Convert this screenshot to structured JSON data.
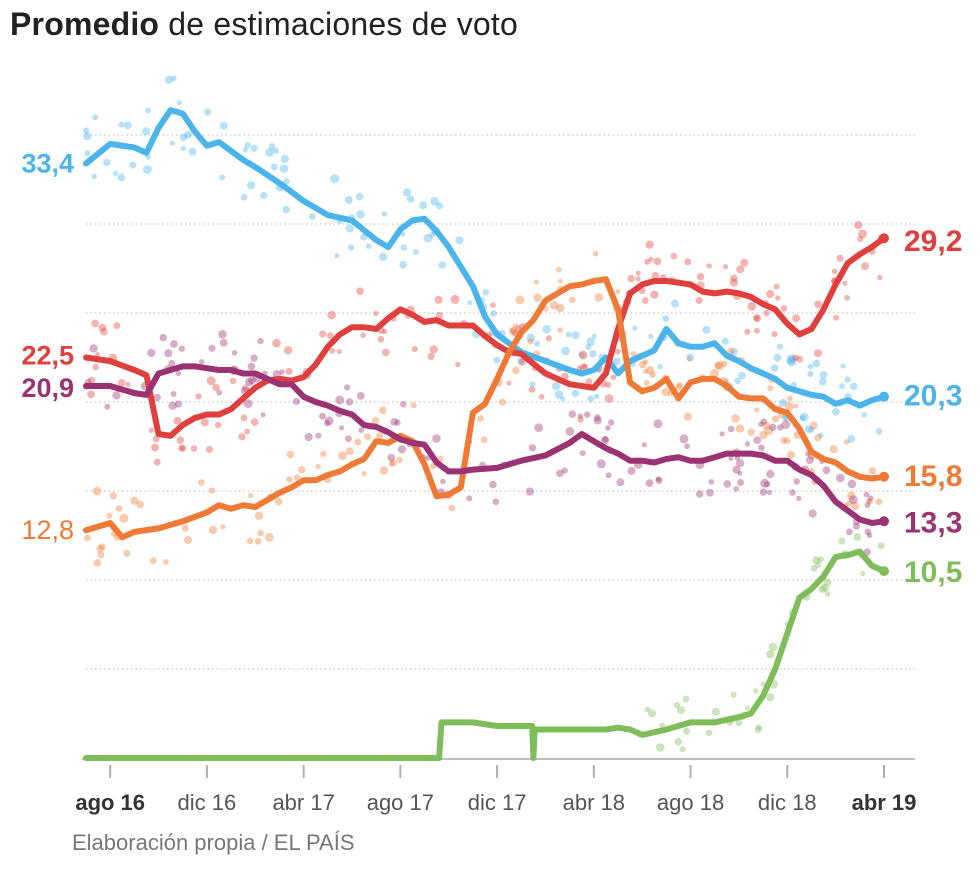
{
  "title": {
    "bold": "Promedio",
    "rest": "de estimaciones de voto"
  },
  "source": "Elaboración propia / EL PAÍS",
  "chart_data": {
    "type": "line",
    "title": "Promedio de estimaciones de voto",
    "xlabel": "",
    "ylabel": "",
    "ylim": [
      0,
      37
    ],
    "gridlines": [
      5,
      10,
      15,
      20,
      25,
      30,
      35
    ],
    "grid": true,
    "xlim": [
      0,
      33
    ],
    "x_ticks": [
      {
        "label": "ago 16",
        "x": 1,
        "bold": true
      },
      {
        "label": "dic 16",
        "x": 5,
        "bold": false
      },
      {
        "label": "abr 17",
        "x": 9,
        "bold": false
      },
      {
        "label": "ago 17",
        "x": 13,
        "bold": false
      },
      {
        "label": "dic 17",
        "x": 17,
        "bold": false
      },
      {
        "label": "abr 18",
        "x": 21,
        "bold": false
      },
      {
        "label": "ago 18",
        "x": 25,
        "bold": false
      },
      {
        "label": "dic 18",
        "x": 29,
        "bold": false
      },
      {
        "label": "abr 19",
        "x": 33,
        "bold": true
      }
    ],
    "series": [
      {
        "name": "blue",
        "color": "#4bb4ea",
        "start_label": "33,4",
        "end_label": "20,3",
        "x": [
          0,
          1,
          2,
          2.5,
          3,
          3.5,
          4,
          4.5,
          5,
          5.5,
          6,
          6.5,
          7,
          8,
          9,
          10,
          11,
          12,
          12.5,
          13,
          13.5,
          14,
          14.5,
          15,
          15.5,
          16,
          16.5,
          17,
          17.5,
          18,
          19,
          20,
          20.5,
          21,
          21.5,
          22,
          22.5,
          23,
          23.5,
          24,
          24.5,
          25,
          25.5,
          26,
          26.5,
          27,
          27.5,
          28,
          28.5,
          29,
          29.5,
          30,
          30.5,
          31,
          31.5,
          32,
          32.5,
          33
        ],
        "y": [
          33.4,
          34.5,
          34.3,
          34,
          35.4,
          36.4,
          36.2,
          35.2,
          34.4,
          34.6,
          34.1,
          33.6,
          33.2,
          32.3,
          31.3,
          30.5,
          30.2,
          29.1,
          28.7,
          29.7,
          30.2,
          30.3,
          29.6,
          28.7,
          27.6,
          26.5,
          24.8,
          23.8,
          23.3,
          22.8,
          22.3,
          21.8,
          21.6,
          21.8,
          22.5,
          21.6,
          22.3,
          22.6,
          22.9,
          24.1,
          23.3,
          23.1,
          23.1,
          23.3,
          22.6,
          22.3,
          21.9,
          21.6,
          21.3,
          20.8,
          20.6,
          20.4,
          20.3,
          19.9,
          20.1,
          19.8,
          20.1,
          20.3
        ]
      },
      {
        "name": "red",
        "color": "#e0403d",
        "start_label": "22,5",
        "end_label": "29,2",
        "x": [
          0,
          1,
          2,
          2.5,
          3,
          3.5,
          4,
          4.5,
          5,
          5.5,
          6,
          6.5,
          7,
          7.5,
          8,
          8.5,
          9,
          9.5,
          10,
          10.5,
          11,
          11.5,
          12,
          12.5,
          13,
          13.5,
          14,
          14.5,
          15,
          15.5,
          16,
          16.5,
          17,
          17.5,
          18,
          19,
          20,
          21,
          21.5,
          22,
          22.5,
          23,
          23.5,
          24,
          24.5,
          25,
          25.5,
          26,
          26.5,
          27,
          27.5,
          28,
          28.5,
          29,
          29.5,
          30,
          30.5,
          31,
          31.5,
          32,
          32.5,
          33
        ],
        "y": [
          22.5,
          22.3,
          21.8,
          21.5,
          18.2,
          18.1,
          18.7,
          19.1,
          19.3,
          19.3,
          19.6,
          20.2,
          20.8,
          21.2,
          21.3,
          21.2,
          21.4,
          22.1,
          23.1,
          23.8,
          24.2,
          24.2,
          24.1,
          24.7,
          25.2,
          24.9,
          24.5,
          24.6,
          24.3,
          24.3,
          24.3,
          23.7,
          23.2,
          22.8,
          22.7,
          21.6,
          21,
          20.8,
          21.6,
          24.1,
          26.1,
          26.6,
          26.8,
          26.8,
          26.7,
          26.6,
          26.2,
          26.1,
          26.2,
          26.1,
          25.9,
          25.5,
          25.2,
          24.4,
          23.8,
          24.1,
          25.2,
          26.6,
          27.8,
          28.3,
          28.7,
          29.2
        ]
      },
      {
        "name": "orange",
        "color": "#ee7a35",
        "start_label": "12,8",
        "end_label": "15,8",
        "x": [
          0,
          1,
          1.5,
          2,
          3,
          4,
          5,
          5.5,
          6,
          6.5,
          7,
          8,
          8.5,
          9,
          9.5,
          10,
          10.5,
          11,
          11.5,
          12,
          12.5,
          13,
          13.5,
          14,
          14.5,
          15,
          15.5,
          16,
          16.5,
          17,
          17.5,
          18,
          18.5,
          19,
          19.5,
          20,
          20.5,
          21,
          21.5,
          22,
          22.5,
          23,
          23.5,
          24,
          24.5,
          25,
          25.5,
          26,
          26.5,
          27,
          27.5,
          28,
          28.5,
          29,
          29.5,
          30,
          30.5,
          31,
          31.5,
          32,
          32.5,
          33
        ],
        "y": [
          12.8,
          13.2,
          12.4,
          12.7,
          12.9,
          13.3,
          13.8,
          14.2,
          14,
          14.2,
          14.1,
          14.9,
          15.2,
          15.6,
          15.6,
          15.9,
          16.1,
          16.5,
          16.8,
          17.8,
          17.7,
          18.1,
          17.8,
          16.5,
          14.7,
          14.8,
          15.2,
          19.4,
          19.9,
          21.3,
          22.8,
          23.9,
          24.6,
          25.7,
          26.1,
          26.5,
          26.6,
          26.8,
          26.9,
          25.2,
          21.1,
          20.6,
          20.8,
          21.3,
          20.2,
          21.1,
          21.3,
          21.3,
          20.9,
          20.3,
          20.2,
          20.2,
          19.6,
          19.4,
          18.5,
          17.2,
          16.8,
          16.6,
          16.1,
          15.8,
          15.7,
          15.8
        ]
      },
      {
        "name": "purple",
        "color": "#9b3272",
        "start_label": "20,9",
        "end_label": "13,3",
        "x": [
          0,
          1,
          2,
          2.5,
          3,
          3.5,
          4,
          4.5,
          5,
          5.5,
          6,
          6.5,
          7,
          8,
          8.5,
          9,
          9.5,
          10,
          10.5,
          11,
          11.5,
          12,
          12.5,
          13,
          13.5,
          14,
          14.5,
          15,
          15.5,
          16,
          17,
          18,
          19,
          20,
          20.5,
          21,
          21.5,
          22,
          22.5,
          23,
          23.5,
          24,
          24.5,
          25,
          25.5,
          26,
          26.5,
          27,
          27.5,
          28,
          28.5,
          29,
          29.5,
          30,
          30.5,
          31,
          31.5,
          32,
          32.5,
          33
        ],
        "y": [
          20.9,
          20.9,
          20.5,
          20.4,
          21.6,
          21.8,
          22,
          22,
          21.9,
          21.8,
          21.8,
          21.6,
          21.6,
          21,
          21,
          20.3,
          20,
          19.8,
          19.5,
          19.3,
          18.7,
          18.6,
          18.3,
          17.9,
          17.7,
          17.6,
          16.6,
          16.1,
          16.1,
          16.2,
          16.3,
          16.7,
          17,
          17.7,
          18.2,
          17.8,
          17.4,
          17.1,
          16.7,
          16.7,
          16.6,
          16.8,
          16.9,
          16.7,
          16.7,
          16.9,
          17.1,
          17.1,
          17.1,
          17.0,
          16.7,
          16.7,
          16.2,
          15.9,
          15.3,
          14.4,
          13.9,
          13.4,
          13.2,
          13.3
        ]
      },
      {
        "name": "green",
        "color": "#7fbc5a",
        "start_label": "",
        "end_label": "10,5",
        "x": [
          0,
          1,
          2,
          3,
          4,
          5,
          6,
          7,
          8,
          9,
          10,
          11,
          12,
          13,
          14,
          14.6,
          14.7,
          15,
          16,
          17,
          18,
          18.45,
          18.5,
          18.55,
          19,
          20,
          21,
          21.5,
          22,
          22.5,
          23,
          24,
          25,
          26,
          27,
          27.5,
          28,
          28.5,
          29,
          29.5,
          30,
          30.5,
          31,
          31.5,
          32,
          32.5,
          33
        ],
        "y": [
          0,
          0,
          0,
          0,
          0,
          0,
          0,
          0,
          0,
          0,
          0,
          0,
          0,
          0,
          0,
          0,
          2,
          2,
          2,
          1.8,
          1.8,
          1.8,
          0,
          1.6,
          1.6,
          1.6,
          1.6,
          1.6,
          1.7,
          1.6,
          1.3,
          1.6,
          2,
          2,
          2.3,
          2.5,
          3.5,
          5,
          7,
          9,
          9.5,
          10.2,
          11.3,
          11.4,
          11.6,
          10.8,
          10.5
        ]
      }
    ]
  }
}
